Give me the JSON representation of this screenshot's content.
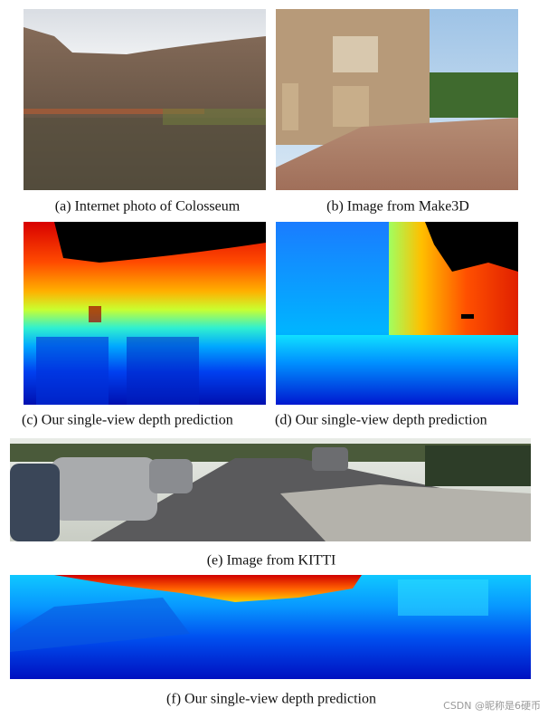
{
  "figure": {
    "panels": [
      {
        "caption": "(a) Internet photo of Colosseum"
      },
      {
        "caption": "(b) Image from Make3D"
      },
      {
        "caption": "(c) Our single-view depth prediction"
      },
      {
        "caption": "(d) Our single-view depth prediction"
      },
      {
        "caption": "(e) Image from KITTI"
      },
      {
        "caption": "(f) Our single-view depth prediction"
      }
    ]
  },
  "watermark": "CSDN @昵称是6硬币"
}
